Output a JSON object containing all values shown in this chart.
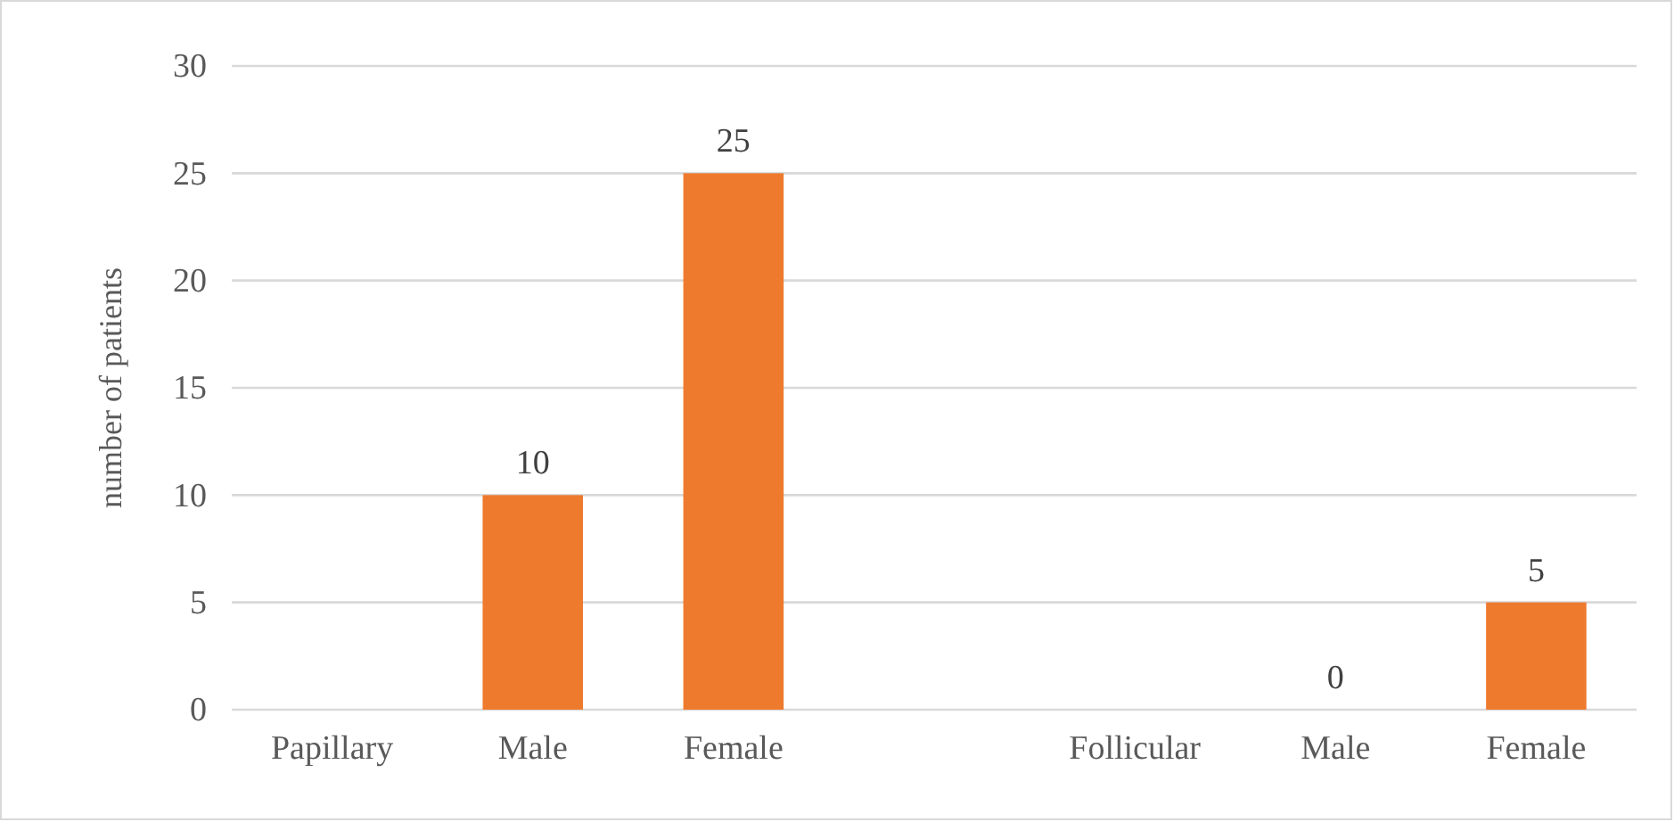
{
  "chart_data": {
    "type": "bar",
    "ylabel": "number of patients",
    "categories": [
      "Papillary",
      "Male",
      "Female",
      null,
      "Follicular",
      "Male",
      "Female"
    ],
    "values": [
      null,
      10,
      25,
      null,
      null,
      0,
      5
    ],
    "value_labels": [
      null,
      "10",
      "25",
      null,
      null,
      "0",
      "5"
    ],
    "color": "#ee7a2e",
    "ylim": [
      0,
      30
    ],
    "yticks": [
      0,
      5,
      10,
      15,
      20,
      25,
      30
    ],
    "grid": "y"
  }
}
